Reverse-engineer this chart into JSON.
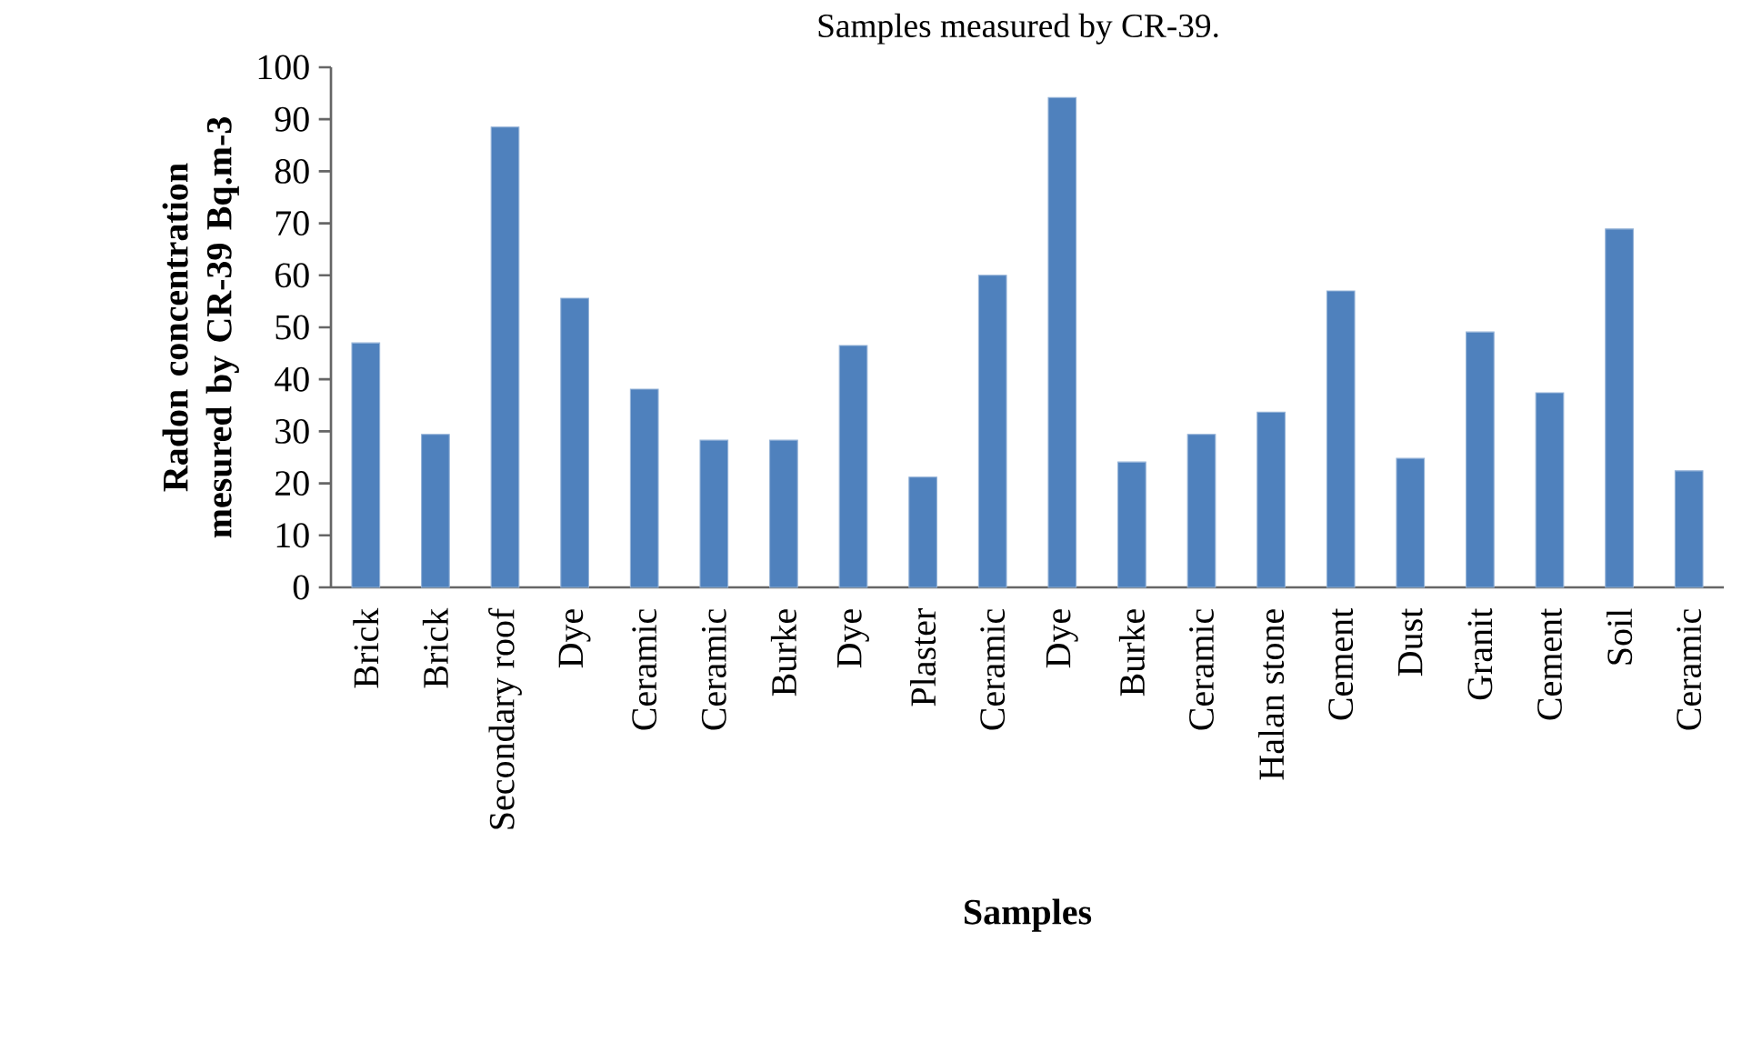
{
  "chart_data": {
    "type": "bar",
    "title": "Samples measured by CR-39.",
    "xlabel": "Samples",
    "ylabel": "Radon concentration mesured by CR-39   Bq.m-3",
    "categories": [
      "Brick",
      "Brick",
      "Secondary roof",
      "Dye",
      "Ceramic",
      "Ceramic",
      "Burke",
      "Dye",
      "Plaster",
      "Ceramic",
      "Dye",
      "Burke",
      "Ceramic",
      "Halan stone",
      "Cement",
      "Dust",
      "Granit",
      "Cement",
      "Soil",
      "Ceramic"
    ],
    "values": [
      47,
      29.4,
      88.5,
      55.6,
      38.1,
      28.3,
      28.3,
      46.5,
      21.2,
      60,
      94.2,
      24.1,
      29.4,
      33.7,
      57,
      24.8,
      49.1,
      37.4,
      68.9,
      22.4
    ],
    "color": "#4f81bd",
    "ylim": [
      0,
      100
    ],
    "yticks": [
      0,
      10,
      20,
      30,
      40,
      50,
      60,
      70,
      80,
      90,
      100
    ]
  }
}
